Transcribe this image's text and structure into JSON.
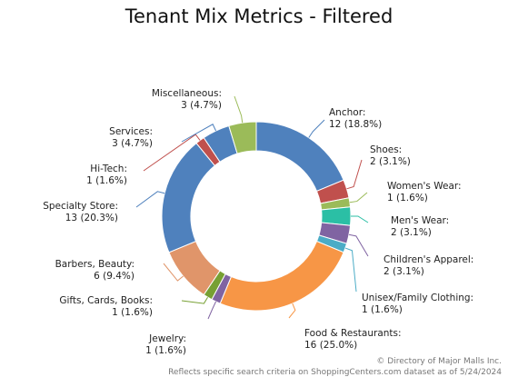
{
  "chart_data": {
    "type": "pie",
    "donut": true,
    "title": "Tenant Mix Metrics - Filtered",
    "slices": [
      {
        "label": "Anchor:",
        "value_text": "12 (18.8%)",
        "value": 12,
        "color": "#4f81bd"
      },
      {
        "label": "Shoes:",
        "value_text": "2 (3.1%)",
        "value": 2,
        "color": "#c0504d"
      },
      {
        "label": "Women's Wear:",
        "value_text": "1 (1.6%)",
        "value": 1,
        "color": "#9bbb59"
      },
      {
        "label": "Men's Wear:",
        "value_text": "2 (3.1%)",
        "value": 2,
        "color": "#2bbfa5"
      },
      {
        "label": "Children's Apparel:",
        "value_text": "2 (3.1%)",
        "value": 2,
        "color": "#8064a2"
      },
      {
        "label": "Unisex/Family Clothing:",
        "value_text": "1 (1.6%)",
        "value": 1,
        "color": "#4bacc6"
      },
      {
        "label": "Food & Restaurants:",
        "value_text": "16 (25.0%)",
        "value": 16,
        "color": "#f79646"
      },
      {
        "label": "Jewelry:",
        "value_text": "1 (1.6%)",
        "value": 1,
        "color": "#8064a2"
      },
      {
        "label": "Gifts, Cards, Books:",
        "value_text": "1 (1.6%)",
        "value": 1,
        "color": "#77a033"
      },
      {
        "label": "Barbers, Beauty:",
        "value_text": "6 (9.4%)",
        "value": 6,
        "color": "#e0956a"
      },
      {
        "label": "Specialty Store:",
        "value_text": "13 (20.3%)",
        "value": 13,
        "color": "#4f81bd"
      },
      {
        "label": "Hi-Tech:",
        "value_text": "1 (1.6%)",
        "value": 1,
        "color": "#c0504d"
      },
      {
        "label": "Services:",
        "value_text": "3 (4.7%)",
        "value": 3,
        "color": "#4f81bd"
      },
      {
        "label": "Miscellaneous:",
        "value_text": "3 (4.7%)",
        "value": 3,
        "color": "#9bbb59"
      }
    ]
  },
  "credits": {
    "line1": "© Directory of Major Malls Inc.",
    "line2": "Reflects specific search criteria on ShoppingCenters.com dataset as of 5/24/2024"
  }
}
